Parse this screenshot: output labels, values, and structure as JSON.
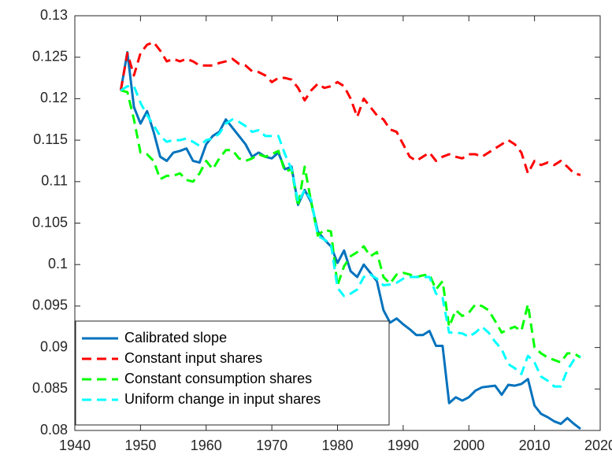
{
  "chart_data": {
    "type": "line",
    "x": [
      1947,
      1948,
      1949,
      1950,
      1951,
      1952,
      1953,
      1954,
      1955,
      1956,
      1957,
      1958,
      1959,
      1960,
      1961,
      1962,
      1963,
      1964,
      1965,
      1966,
      1967,
      1968,
      1969,
      1970,
      1971,
      1972,
      1973,
      1974,
      1975,
      1976,
      1977,
      1978,
      1979,
      1980,
      1981,
      1982,
      1983,
      1984,
      1985,
      1986,
      1987,
      1988,
      1989,
      1990,
      1991,
      1992,
      1993,
      1994,
      1995,
      1996,
      1997,
      1998,
      1999,
      2000,
      2001,
      2002,
      2003,
      2004,
      2005,
      2006,
      2007,
      2008,
      2009,
      2010,
      2011,
      2012,
      2013,
      2014,
      2015,
      2016,
      2017
    ],
    "series": [
      {
        "name": "Calibrated slope",
        "color": "#0072bd",
        "line_style": "solid",
        "values": [
          0.121,
          0.1256,
          0.119,
          0.117,
          0.1185,
          0.116,
          0.113,
          0.1125,
          0.1135,
          0.1137,
          0.114,
          0.1125,
          0.1123,
          0.1145,
          0.1155,
          0.116,
          0.1175,
          0.1165,
          0.1155,
          0.1145,
          0.113,
          0.1135,
          0.113,
          0.1128,
          0.1135,
          0.1115,
          0.1118,
          0.1072,
          0.109,
          0.1075,
          0.104,
          0.103,
          0.1022,
          0.1002,
          0.1017,
          0.0992,
          0.0985,
          0.1,
          0.099,
          0.098,
          0.0945,
          0.093,
          0.0935,
          0.0928,
          0.0922,
          0.0915,
          0.0915,
          0.092,
          0.0902,
          0.0902,
          0.0833,
          0.084,
          0.0836,
          0.084,
          0.0848,
          0.0852,
          0.0853,
          0.0854,
          0.0843,
          0.0855,
          0.0854,
          0.0856,
          0.0862,
          0.083,
          0.082,
          0.0816,
          0.0811,
          0.0808,
          0.0815,
          0.0808,
          0.0802
        ]
      },
      {
        "name": "Constant input shares",
        "color": "#ff0000",
        "line_style": "dashed",
        "values": [
          0.121,
          0.1255,
          0.1228,
          0.1255,
          0.1265,
          0.1268,
          0.1258,
          0.1245,
          0.1248,
          0.1245,
          0.1248,
          0.1245,
          0.124,
          0.124,
          0.124,
          0.1243,
          0.1245,
          0.1248,
          0.1242,
          0.124,
          0.1233,
          0.1232,
          0.1228,
          0.122,
          0.1225,
          0.1225,
          0.1223,
          0.1213,
          0.1198,
          0.121,
          0.1218,
          0.1213,
          0.1215,
          0.122,
          0.1215,
          0.12,
          0.1178,
          0.12,
          0.119,
          0.118,
          0.1175,
          0.1163,
          0.116,
          0.1145,
          0.113,
          0.1125,
          0.113,
          0.1135,
          0.1125,
          0.113,
          0.1133,
          0.113,
          0.1128,
          0.1133,
          0.1133,
          0.113,
          0.1135,
          0.114,
          0.1145,
          0.115,
          0.1145,
          0.1135,
          0.111,
          0.1125,
          0.112,
          0.1123,
          0.112,
          0.1125,
          0.1118,
          0.111,
          0.1108
        ]
      },
      {
        "name": "Constant consumption shares",
        "color": "#00ff00",
        "line_style": "dashed",
        "values": [
          0.121,
          0.1208,
          0.1175,
          0.1135,
          0.1133,
          0.1125,
          0.1103,
          0.1107,
          0.1107,
          0.111,
          0.1102,
          0.11,
          0.111,
          0.1125,
          0.1115,
          0.1128,
          0.1138,
          0.1138,
          0.1128,
          0.1125,
          0.1128,
          0.1133,
          0.113,
          0.1133,
          0.1137,
          0.1112,
          0.1115,
          0.107,
          0.1118,
          0.1075,
          0.1035,
          0.1042,
          0.104,
          0.0975,
          0.0998,
          0.101,
          0.1015,
          0.1022,
          0.101,
          0.1015,
          0.0985,
          0.0977,
          0.0988,
          0.099,
          0.0988,
          0.0985,
          0.0987,
          0.0988,
          0.097,
          0.098,
          0.0925,
          0.0945,
          0.0938,
          0.0942,
          0.0952,
          0.095,
          0.0945,
          0.0932,
          0.0918,
          0.0922,
          0.0925,
          0.092,
          0.0952,
          0.09,
          0.0893,
          0.0888,
          0.0885,
          0.0882,
          0.0893,
          0.0893,
          0.0888
        ]
      },
      {
        "name": "Uniform change in input shares",
        "color": "#00ffff",
        "line_style": "dashed",
        "values": [
          0.121,
          0.1215,
          0.1215,
          0.1195,
          0.118,
          0.1168,
          0.1155,
          0.1148,
          0.115,
          0.115,
          0.1152,
          0.1148,
          0.1143,
          0.115,
          0.1152,
          0.1158,
          0.117,
          0.1175,
          0.1172,
          0.1167,
          0.116,
          0.1162,
          0.1155,
          0.1155,
          0.1155,
          0.1133,
          0.1115,
          0.1075,
          0.109,
          0.1078,
          0.1035,
          0.103,
          0.1025,
          0.0972,
          0.0962,
          0.0965,
          0.097,
          0.0985,
          0.0988,
          0.0983,
          0.0975,
          0.0976,
          0.0978,
          0.0983,
          0.0985,
          0.0985,
          0.0985,
          0.0985,
          0.0965,
          0.096,
          0.0918,
          0.0918,
          0.0917,
          0.0913,
          0.0918,
          0.0925,
          0.0918,
          0.0907,
          0.0898,
          0.088,
          0.0875,
          0.0868,
          0.089,
          0.0882,
          0.0865,
          0.086,
          0.0853,
          0.0853,
          0.0873,
          0.0885,
          0.089
        ]
      }
    ],
    "xlim": [
      1940,
      2020
    ],
    "xticks": [
      1940,
      1950,
      1960,
      1970,
      1980,
      1990,
      2000,
      2010,
      2020
    ],
    "ylim": [
      0.08,
      0.13
    ],
    "yticks": [
      0.08,
      0.085,
      0.09,
      0.095,
      0.1,
      0.105,
      0.11,
      0.115,
      0.12,
      0.125,
      0.13
    ],
    "grid": false,
    "legend_position": "southwest"
  }
}
